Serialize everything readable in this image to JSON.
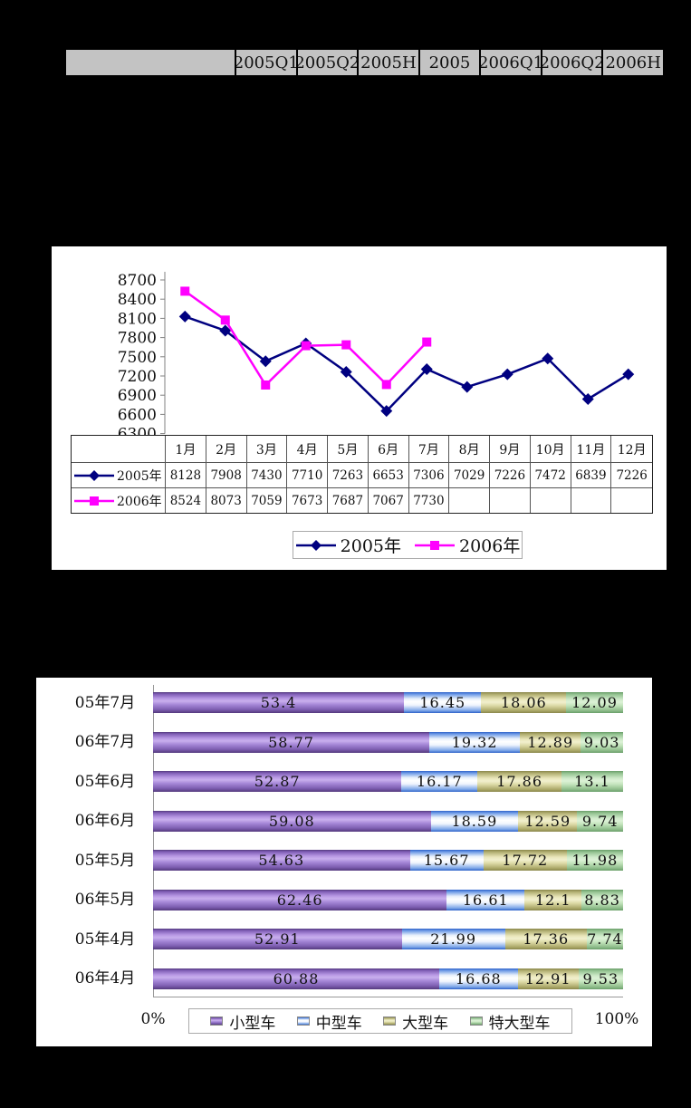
{
  "summary_table": {
    "columns": [
      "",
      "2005Q1",
      "2005Q2",
      "2005H",
      "2005",
      "2006Q1",
      "2006Q2",
      "2006H"
    ]
  },
  "colors": {
    "series_2005": "#000080",
    "series_2006": "#FF00FF",
    "bar_small": "#9673C8",
    "bar_medium": "#4D88E0",
    "bar_large": "#C5C285",
    "bar_xlarge": "#9CCF9C",
    "table_header_bg": "#C3C3C3",
    "axis": "#808080"
  },
  "chart_data": [
    {
      "type": "line",
      "categories": [
        "1月",
        "2月",
        "3月",
        "4月",
        "5月",
        "6月",
        "7月",
        "8月",
        "9月",
        "10月",
        "11月",
        "12月"
      ],
      "series": [
        {
          "name": "2005年",
          "color": "#000080",
          "marker": "diamond",
          "values": [
            8128,
            7908,
            7430,
            7710,
            7263,
            6653,
            7306,
            7029,
            7226,
            7472,
            6839,
            7226
          ]
        },
        {
          "name": "2006年",
          "color": "#FF00FF",
          "marker": "square",
          "values": [
            8524,
            8073,
            7059,
            7673,
            7687,
            7067,
            7730,
            null,
            null,
            null,
            null,
            null
          ]
        }
      ],
      "ylim": [
        6300,
        8700
      ],
      "ytick_step": 300,
      "ytick_labels": [
        "8700",
        "8400",
        "8100",
        "7800",
        "7500",
        "7200",
        "6900",
        "6600",
        "6300"
      ],
      "grid": false,
      "legend_position": "bottom",
      "show_data_table": true
    },
    {
      "type": "bar",
      "stacked": true,
      "horizontal": true,
      "categories": [
        "05年7月",
        "06年7月",
        "05年6月",
        "06年6月",
        "05年5月",
        "06年5月",
        "05年4月",
        "06年4月"
      ],
      "series": [
        {
          "name": "小型车",
          "color": "#9673C8",
          "values": [
            53.4,
            58.77,
            52.87,
            59.08,
            54.63,
            62.46,
            52.91,
            60.88
          ]
        },
        {
          "name": "中型车",
          "color": "#4D88E0",
          "values": [
            16.45,
            19.32,
            16.17,
            18.59,
            15.67,
            16.61,
            21.99,
            16.68
          ]
        },
        {
          "name": "大型车",
          "color": "#C5C285",
          "values": [
            18.06,
            12.89,
            17.86,
            12.59,
            17.72,
            12.1,
            17.36,
            12.91
          ]
        },
        {
          "name": "特大型车",
          "color": "#9CCF9C",
          "values": [
            12.09,
            9.03,
            13.1,
            9.74,
            11.98,
            8.83,
            7.74,
            9.53
          ]
        }
      ],
      "xlim": [
        0,
        100
      ],
      "x_axis_labels": [
        "0%",
        "100%"
      ],
      "legend_position": "bottom"
    }
  ]
}
